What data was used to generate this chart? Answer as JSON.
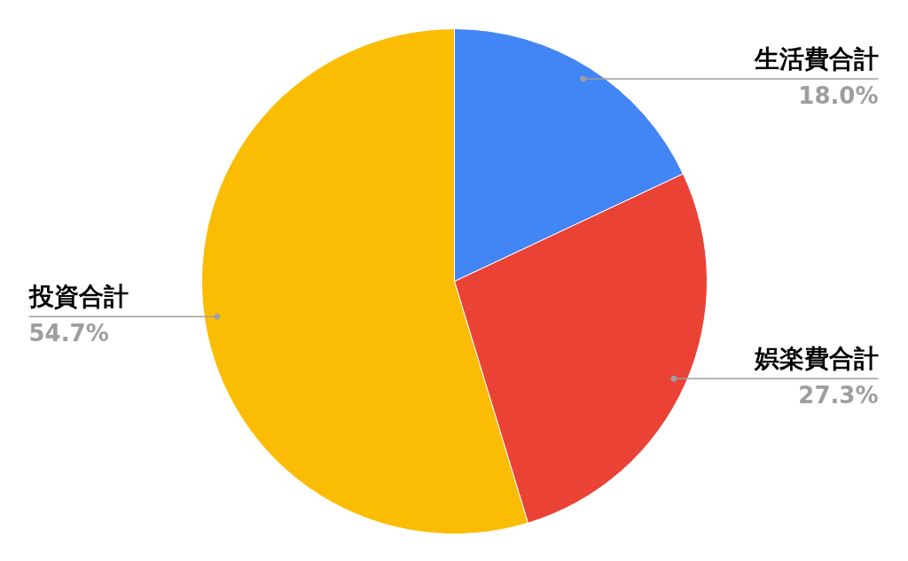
{
  "chart_data": {
    "type": "pie",
    "categories": [
      "生活費合計",
      "娯楽費合計",
      "投資合計"
    ],
    "values": [
      18.0,
      27.3,
      54.7
    ],
    "colors": [
      "#4285f4",
      "#ea4335",
      "#fbbc04"
    ],
    "value_labels": [
      "18.0%",
      "27.3%",
      "54.7%"
    ]
  }
}
